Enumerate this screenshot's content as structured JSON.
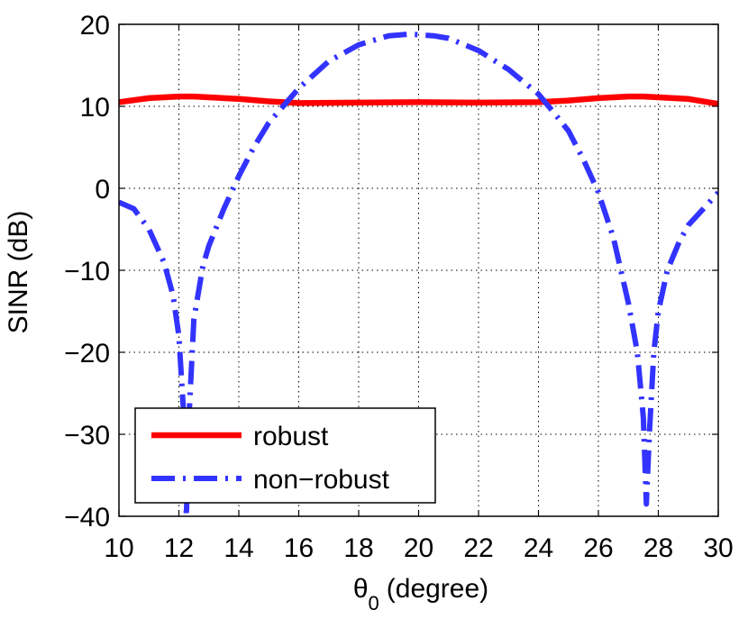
{
  "chart_data": {
    "type": "line",
    "xlabel": "(degree)",
    "xlabel_symbol": "θ",
    "xlabel_subscript": "0",
    "ylabel": "SINR (dB)",
    "xlim": [
      10,
      30
    ],
    "ylim": [
      -40,
      20
    ],
    "xticks": [
      10,
      12,
      14,
      16,
      18,
      20,
      22,
      24,
      26,
      28,
      30
    ],
    "yticks": [
      -40,
      -30,
      -20,
      -10,
      0,
      10,
      20
    ],
    "ytick_labels": [
      "−40",
      "−30",
      "−20",
      "−10",
      "0",
      "10",
      "20"
    ],
    "grid": true,
    "legend_position": "bottom-left",
    "series": [
      {
        "name": "robust",
        "color": "#ff0000",
        "style": "solid",
        "x": [
          10,
          11,
          12,
          12.5,
          13,
          14,
          15,
          16,
          18,
          20,
          22,
          24,
          25,
          26,
          27,
          27.5,
          28,
          29,
          30
        ],
        "y": [
          10.5,
          11.0,
          11.2,
          11.2,
          11.1,
          10.9,
          10.6,
          10.4,
          10.45,
          10.5,
          10.45,
          10.5,
          10.7,
          11.0,
          11.2,
          11.2,
          11.1,
          10.9,
          10.3
        ]
      },
      {
        "name": "non−robust",
        "color": "#3333ff",
        "style": "dash-dot",
        "x": [
          10,
          10.5,
          11,
          11.5,
          11.8,
          12.0,
          12.15,
          12.25,
          12.35,
          12.5,
          12.8,
          13,
          13.5,
          14,
          14.5,
          15,
          16,
          17,
          18,
          19,
          19.7,
          20.5,
          21,
          22,
          23,
          24,
          24.5,
          25,
          25.5,
          26,
          26.5,
          27,
          27.3,
          27.5,
          27.6,
          27.7,
          27.85,
          28,
          28.3,
          28.7,
          29,
          29.5,
          30
        ],
        "y": [
          -1.7,
          -2.5,
          -5,
          -9,
          -13,
          -18,
          -27,
          -40,
          -27,
          -16,
          -9.5,
          -7,
          -2.5,
          1.5,
          5,
          8,
          12.2,
          15.5,
          17.5,
          18.6,
          18.8,
          18.6,
          18.3,
          16.8,
          14.5,
          11.5,
          9.3,
          7,
          3.5,
          -0.5,
          -6,
          -14,
          -20,
          -28,
          -38.5,
          -30,
          -20,
          -15,
          -10,
          -6.5,
          -4.5,
          -2.5,
          -0.5
        ]
      }
    ]
  }
}
